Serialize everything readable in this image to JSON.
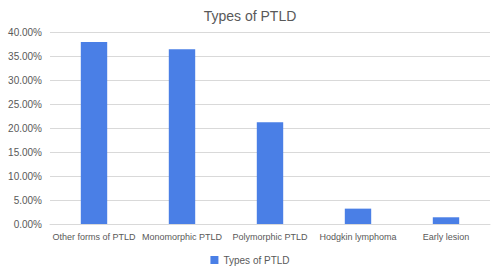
{
  "chart_data": {
    "type": "bar",
    "title": "Types of PTLD",
    "categories": [
      "Other forms of PTLD",
      "Monomorphic PTLD",
      "Polymorphic PTLD",
      "Hodgkin lymphoma",
      "Early lesion"
    ],
    "series": [
      {
        "name": "Types of PTLD",
        "color": "#4a7fe6",
        "values": [
          37.9,
          36.4,
          21.2,
          3.2,
          1.4
        ]
      }
    ],
    "ylim": [
      0,
      40
    ],
    "yticks": [
      {
        "value": 0,
        "label": "0.00%"
      },
      {
        "value": 5,
        "label": "5.00%"
      },
      {
        "value": 10,
        "label": "10.00%"
      },
      {
        "value": 15,
        "label": "15.00%"
      },
      {
        "value": 20,
        "label": "20.00%"
      },
      {
        "value": 25,
        "label": "25.00%"
      },
      {
        "value": 30,
        "label": "30.00%"
      },
      {
        "value": 35,
        "label": "35.00%"
      },
      {
        "value": 40,
        "label": "40.00%"
      }
    ],
    "grid": true,
    "legend": "bottom"
  }
}
